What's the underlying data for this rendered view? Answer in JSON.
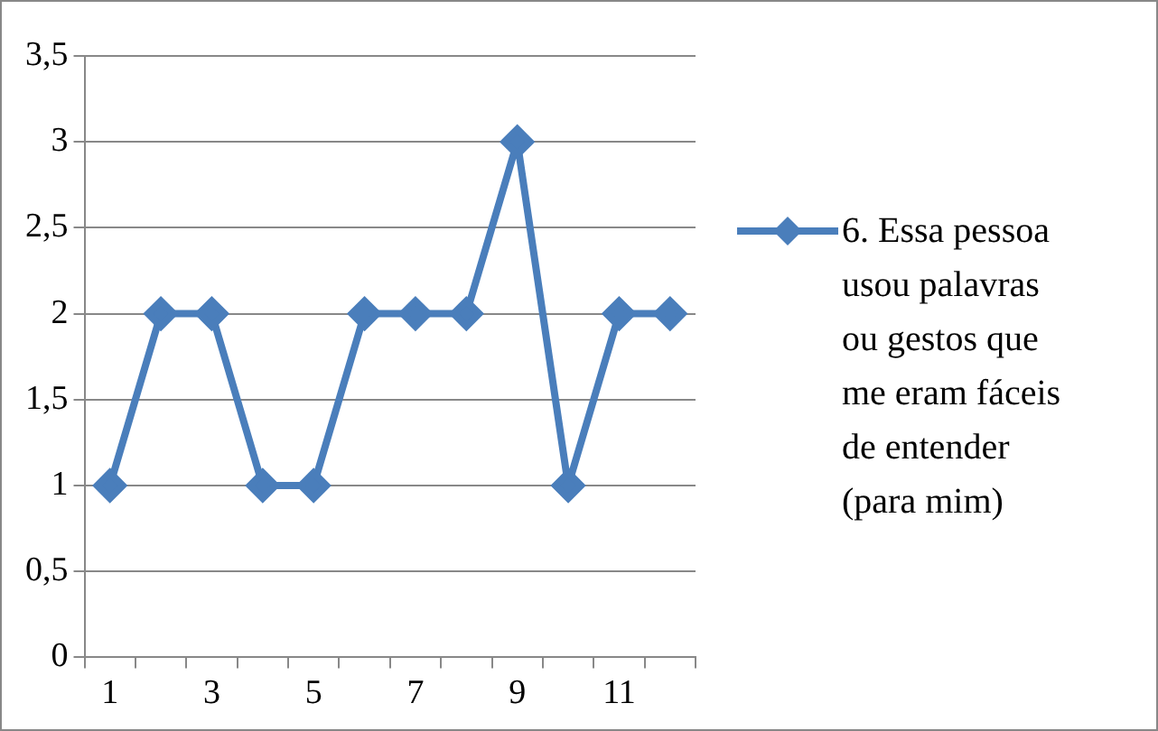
{
  "chart_data": {
    "type": "line",
    "categories": [
      "1",
      null,
      "3",
      null,
      "5",
      null,
      "7",
      null,
      "9",
      null,
      "11",
      null
    ],
    "series": [
      {
        "name": "6. Essa pessoa usou palavras ou gestos que me eram fáceis de entender (para mim)",
        "color": "#4a7ebb",
        "values": [
          1,
          2,
          2,
          1,
          1,
          2,
          2,
          2,
          3,
          1,
          2,
          2
        ]
      }
    ],
    "ylim": [
      0,
      3.5
    ],
    "yticks": [
      0,
      {
        "value": 0.5,
        "label": "0,5"
      },
      1,
      {
        "value": 1.5,
        "label": "1,5"
      },
      2,
      {
        "value": 2.5,
        "label": "2,5"
      },
      3,
      {
        "value": 3.5,
        "label": "3,5"
      }
    ],
    "grid": "y",
    "legend": "right",
    "marker": "diamond",
    "line_style": "solid"
  }
}
